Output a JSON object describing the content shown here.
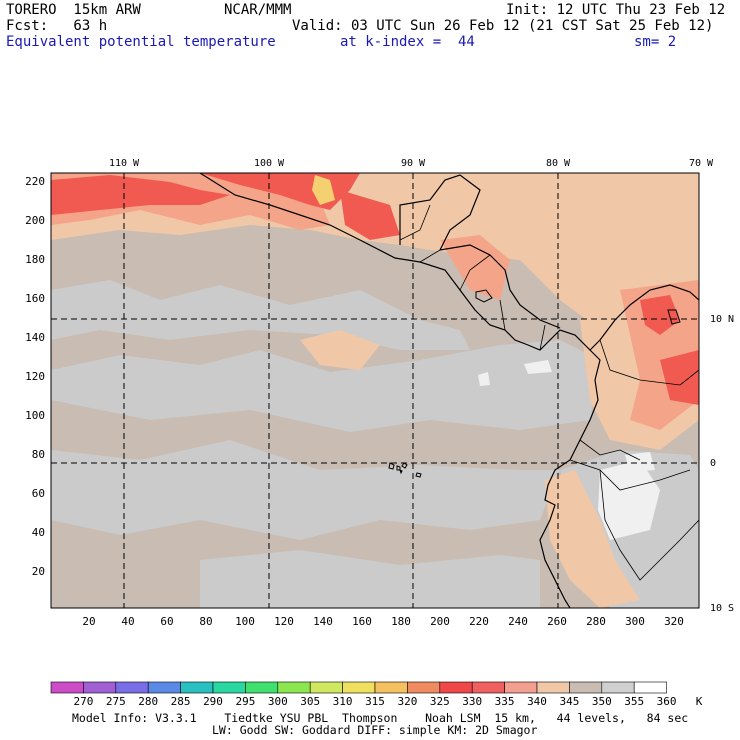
{
  "header": {
    "model_line": "TORERO  15km ARW",
    "org": "NCAR/MMM",
    "init": "Init: 12 UTC Thu 23 Feb 12",
    "fcst": "Fcst:   63 h",
    "valid": "Valid: 03 UTC Sun 26 Feb 12 (21 CST Sat 25 Feb 12)",
    "field": "Equivalent potential temperature",
    "level": "at k-index =  44",
    "smooth": "sm= 2"
  },
  "map": {
    "top_labels": [
      "110 W",
      "100 W",
      "90 W",
      "80 W",
      "70 W"
    ],
    "right_labels": [
      "10 N",
      "0",
      "10 S"
    ],
    "y_ticks": [
      "220",
      "200",
      "180",
      "160",
      "140",
      "120",
      "100",
      "80",
      "60",
      "40",
      "20"
    ],
    "x_ticks": [
      "20",
      "40",
      "60",
      "80",
      "100",
      "120",
      "140",
      "160",
      "180",
      "200",
      "220",
      "240",
      "260",
      "280",
      "300",
      "320"
    ],
    "colors": {
      "background": "#c8bcb3",
      "gray": "#cbcbcb",
      "peach": "#f0c8a8",
      "salmon": "#f4a488",
      "red": "#f05a50",
      "orange": "#f4846a",
      "yellow": "#f4d070",
      "white": "#f0f0f0"
    }
  },
  "colorbar": {
    "labels": [
      "270",
      "275",
      "280",
      "285",
      "290",
      "295",
      "300",
      "305",
      "310",
      "315",
      "320",
      "325",
      "330",
      "335",
      "340",
      "345",
      "350",
      "355",
      "360",
      "K"
    ],
    "colors": [
      "#cc4cc8",
      "#a060d4",
      "#7a6ee6",
      "#5a8ae6",
      "#28c0c0",
      "#28d8a0",
      "#40e070",
      "#8ce650",
      "#d0e860",
      "#f0e060",
      "#f4c060",
      "#f08a60",
      "#f04848",
      "#f06060",
      "#f4a090",
      "#f0c8a8",
      "#c8bcb3",
      "#d0d0d0",
      "#ffffff"
    ]
  },
  "footer": {
    "line1": "Model Info: V3.3.1    Tiedtke YSU PBL  Thompson    Noah LSM  15 km,   44 levels,   84 sec",
    "line2": "LW: Godd SW: Goddard DIFF: simple KM: 2D Smagor"
  }
}
